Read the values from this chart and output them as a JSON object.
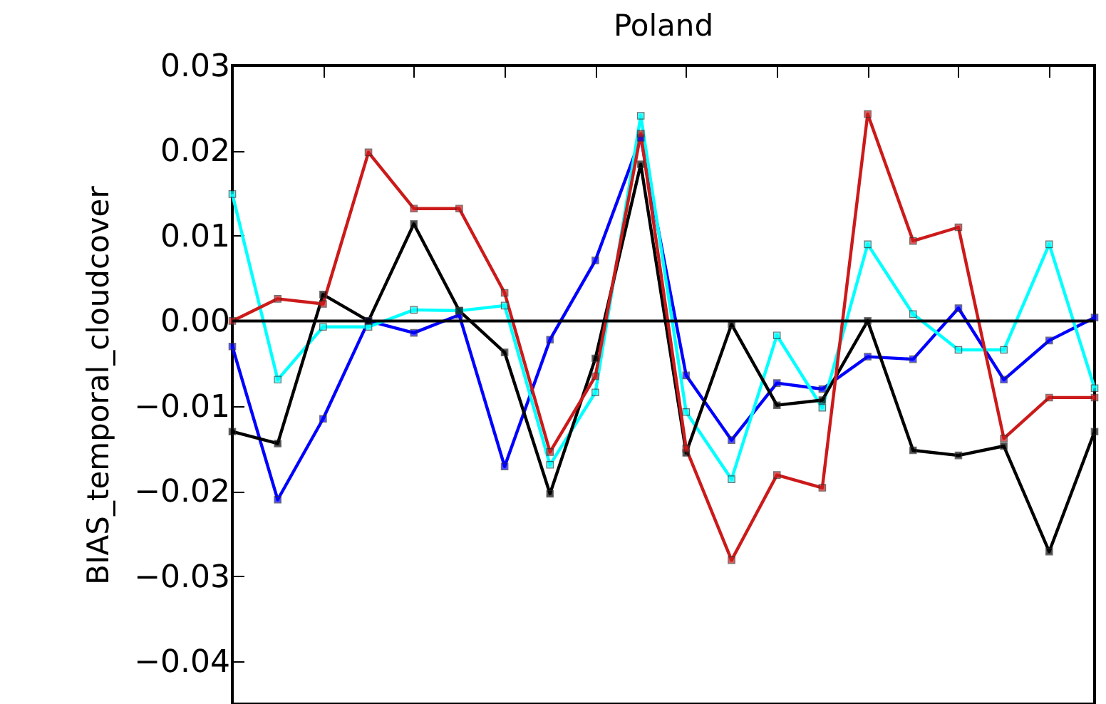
{
  "chart_data": {
    "type": "line",
    "title": "Poland",
    "ylabel": "BIAS_temporal_cloudcover",
    "categories": [
      null,
      null,
      null,
      null,
      null,
      null,
      null,
      null,
      null,
      null,
      null,
      null,
      null,
      null,
      null,
      null,
      null,
      null,
      null,
      null
    ],
    "series": [
      {
        "color": "#0000ff",
        "values": [
          -0.003,
          -0.021,
          -0.0115,
          0.0,
          -0.0014,
          0.0007,
          -0.0171,
          -0.0022,
          0.0071,
          0.0215,
          -0.0064,
          -0.014,
          -0.0073,
          -0.008,
          -0.0042,
          -0.0045,
          0.0015,
          -0.0069,
          -0.0023,
          0.0004
        ]
      },
      {
        "color": "#00ffff",
        "values": [
          0.0149,
          -0.0069,
          -0.0007,
          -0.0007,
          0.0013,
          0.0012,
          0.0018,
          -0.0169,
          -0.0084,
          0.0241,
          -0.0107,
          -0.0186,
          -0.0017,
          -0.0102,
          0.009,
          0.0008,
          -0.0034,
          -0.0034,
          0.009,
          -0.0079
        ]
      },
      {
        "color": "#000000",
        "values": [
          -0.013,
          -0.0144,
          0.0031,
          0.0,
          0.0114,
          0.0012,
          -0.0037,
          -0.0203,
          -0.0044,
          0.0184,
          -0.0155,
          -0.0004,
          -0.0099,
          -0.0093,
          0.0,
          -0.0152,
          -0.0158,
          -0.0147,
          -0.0271,
          -0.013
        ]
      },
      {
        "color": "#cc1a1a",
        "values": [
          0.0,
          0.0026,
          0.002,
          0.0198,
          0.0132,
          0.0132,
          0.0033,
          -0.0154,
          -0.0065,
          0.022,
          -0.015,
          -0.0281,
          -0.0181,
          -0.0196,
          0.0243,
          0.0094,
          0.011,
          -0.0138,
          -0.009,
          -0.009
        ]
      }
    ],
    "ylim": [
      -0.045,
      0.03
    ],
    "yticks": [
      {
        "value": -0.04,
        "label": "−0.04"
      },
      {
        "value": -0.03,
        "label": "−0.03"
      },
      {
        "value": -0.02,
        "label": "−0.02"
      },
      {
        "value": -0.01,
        "label": "−0.01"
      },
      {
        "value": 0,
        "label": "0.00"
      },
      {
        "value": 0.01,
        "label": "0.01"
      },
      {
        "value": 0.02,
        "label": "0.02"
      },
      {
        "value": 0.03,
        "label": "0.03"
      }
    ],
    "ref_lines": [
      {
        "axis": "y",
        "value": 0,
        "color": "#000000"
      }
    ],
    "tick_labels": "y",
    "marker": "square",
    "line_style": "solid",
    "legend": false
  }
}
